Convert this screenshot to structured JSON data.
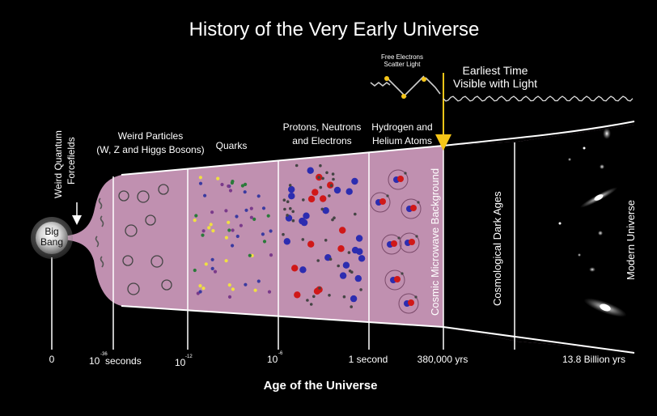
{
  "title": "History of the Very Early Universe",
  "big_bang": {
    "line1": "Big",
    "line2": "Bang"
  },
  "eras": {
    "quantum": {
      "line1": "Weird Quantum",
      "line2": "Forcefields"
    },
    "weird": {
      "line1": "Weird Particles",
      "line2": "(W, Z and Higgs Bosons)"
    },
    "quarks": "Quarks",
    "pne": {
      "line1": "Protons, Neutrons",
      "line2": "and Electrons"
    },
    "hhe": {
      "line1": "Hydrogen and",
      "line2": "Helium Atoms"
    },
    "cmb": "Cosmic Microwave Background",
    "dark": "Cosmological Dark Ages",
    "modern": "Modern Universe"
  },
  "scatter": {
    "line1": "Free Electrons",
    "line2": "Scatter Light"
  },
  "earliest": {
    "line1": "Earliest Time",
    "line2": "Visible with Light"
  },
  "axis": {
    "title": "Age of the Universe",
    "t0": "0",
    "t1_base": "10",
    "t1_exp": "-36",
    "t1_unit": "seconds",
    "t2_base": "10",
    "t2_exp": "-12",
    "t3_base": "10",
    "t3_exp": "-6",
    "t4": "1 second",
    "t5": "380,000 yrs",
    "t6": "13.8 Billion yrs"
  },
  "colors": {
    "background": "#000000",
    "cone_start": "#f8ecc0",
    "yellow": "#fbe040",
    "red": "#ee2424",
    "magenta": "#a0286e",
    "cmb": "#b87898",
    "arrow": "#f5c518",
    "electron": "#3a3aa8",
    "proton": "#c81818"
  }
}
